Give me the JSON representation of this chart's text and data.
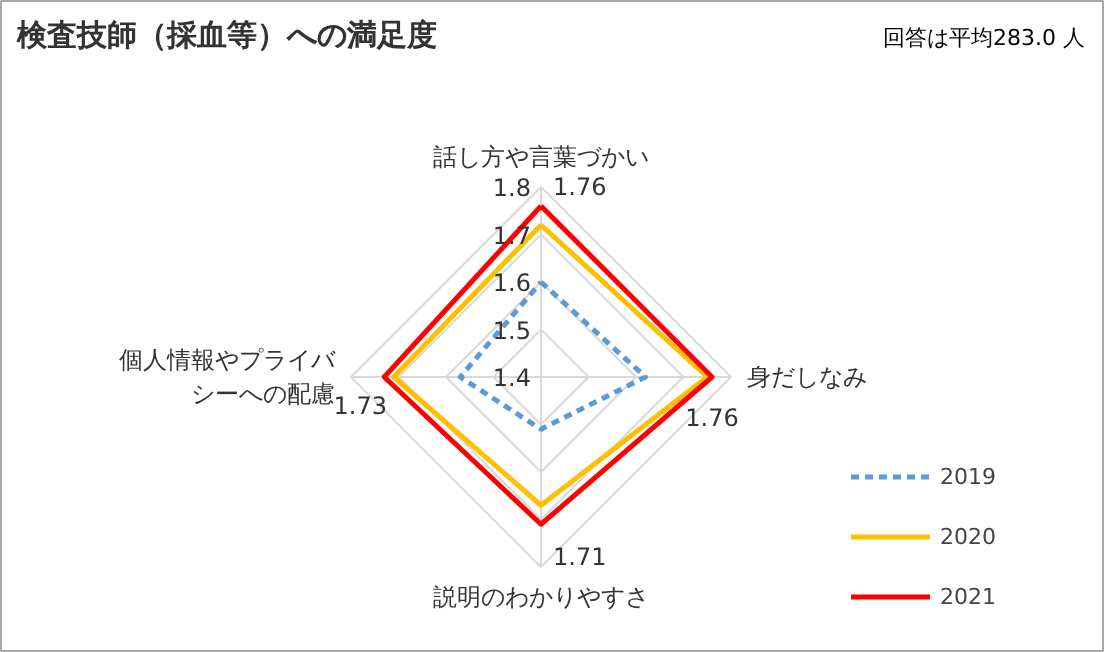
{
  "chart_data": {
    "type": "radar",
    "title": "検査技師（採血等）への満足度",
    "annotations": [
      "回答は平均283.0 人"
    ],
    "categories": [
      "話し方や言葉づかい",
      "身だしなみ",
      "説明のわかりやすさ",
      "個人情報やプライバシーへの配慮"
    ],
    "ylim": [
      1.4,
      1.8
    ],
    "yticks": [
      1.4,
      1.5,
      1.6,
      1.7,
      1.8
    ],
    "grid": true,
    "legend": "right",
    "marker": "none",
    "series": [
      {
        "name": "2019",
        "color": "#5b9bd5",
        "line_style": "dashed",
        "values": [
          1.6,
          1.62,
          1.51,
          1.57
        ]
      },
      {
        "name": "2020",
        "color": "#ffc000",
        "line_style": "solid",
        "values": [
          1.72,
          1.75,
          1.67,
          1.71
        ]
      },
      {
        "name": "2021",
        "color": "#ff0000",
        "line_style": "solid",
        "values": [
          1.76,
          1.76,
          1.71,
          1.73
        ],
        "value_labels": [
          "1.76",
          "1.76",
          "1.71",
          "1.73"
        ]
      }
    ]
  }
}
